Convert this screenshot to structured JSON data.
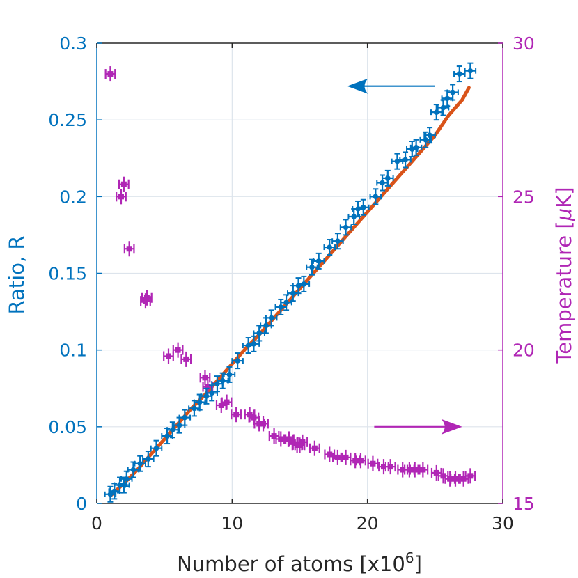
{
  "chart_data": {
    "type": "scatter",
    "title": "",
    "xlabel": "Number of atoms [x10",
    "xlabel_sup": "6",
    "xlabel_end": "]",
    "ylabel_left": "Ratio, R",
    "ylabel_right": "Temperature [",
    "ylabel_right_mu": "μ",
    "ylabel_right_end": "K]",
    "xlim": [
      0,
      30
    ],
    "ylim_left": [
      0,
      0.3
    ],
    "ylim_right": [
      15,
      30
    ],
    "x_ticks": [
      0,
      10,
      20,
      30
    ],
    "x_tick_labels": [
      "0",
      "10",
      "20",
      "30"
    ],
    "y_left_ticks": [
      0,
      0.05,
      0.1,
      0.15,
      0.2,
      0.25,
      0.3
    ],
    "y_left_tick_labels": [
      "0",
      "0.05",
      "0.1",
      "0.15",
      "0.2",
      "0.25",
      "0.3"
    ],
    "y_right_ticks": [
      15,
      20,
      25,
      30
    ],
    "y_right_tick_labels": [
      "15",
      "20",
      "25",
      "30"
    ],
    "grid": true,
    "colors": {
      "ratio": "#0072BD",
      "temperature": "#B026B5",
      "fit": "#D95319",
      "axis": "#262626",
      "grid": "#dde4ec"
    },
    "series": [
      {
        "name": "Ratio R",
        "axis": "left",
        "marker": "circle",
        "xerr": 0.4,
        "yerr": 0.005,
        "points": [
          [
            1.0,
            0.006
          ],
          [
            1.3,
            0.008
          ],
          [
            1.7,
            0.012
          ],
          [
            2.0,
            0.012
          ],
          [
            2.2,
            0.016
          ],
          [
            2.7,
            0.022
          ],
          [
            3.2,
            0.026
          ],
          [
            3.8,
            0.029
          ],
          [
            4.4,
            0.036
          ],
          [
            5.2,
            0.044
          ],
          [
            5.6,
            0.048
          ],
          [
            6.1,
            0.051
          ],
          [
            6.5,
            0.056
          ],
          [
            7.2,
            0.062
          ],
          [
            7.6,
            0.066
          ],
          [
            8.1,
            0.07
          ],
          [
            8.5,
            0.072
          ],
          [
            8.9,
            0.078
          ],
          [
            9.3,
            0.08
          ],
          [
            9.8,
            0.084
          ],
          [
            10.4,
            0.093
          ],
          [
            11.2,
            0.103
          ],
          [
            11.6,
            0.104
          ],
          [
            12.0,
            0.111
          ],
          [
            12.5,
            0.116
          ],
          [
            12.9,
            0.121
          ],
          [
            13.6,
            0.128
          ],
          [
            14.0,
            0.131
          ],
          [
            14.5,
            0.137
          ],
          [
            14.9,
            0.142
          ],
          [
            15.3,
            0.143
          ],
          [
            15.9,
            0.154
          ],
          [
            16.4,
            0.158
          ],
          [
            17.2,
            0.167
          ],
          [
            17.8,
            0.171
          ],
          [
            18.4,
            0.18
          ],
          [
            19.0,
            0.187
          ],
          [
            19.3,
            0.192
          ],
          [
            19.7,
            0.193
          ],
          [
            20.6,
            0.2
          ],
          [
            21.1,
            0.209
          ],
          [
            21.5,
            0.212
          ],
          [
            22.2,
            0.223
          ],
          [
            22.8,
            0.224
          ],
          [
            23.3,
            0.231
          ],
          [
            23.6,
            0.232
          ],
          [
            24.3,
            0.237
          ],
          [
            24.6,
            0.24
          ],
          [
            25.1,
            0.255
          ],
          [
            25.6,
            0.258
          ],
          [
            25.9,
            0.264
          ],
          [
            26.3,
            0.268
          ],
          [
            26.8,
            0.28
          ],
          [
            27.6,
            0.282
          ]
        ]
      },
      {
        "name": "Temperature",
        "axis": "right",
        "marker": "square",
        "xerr": 0.35,
        "yerr": 0.25,
        "points": [
          [
            1.0,
            29.0
          ],
          [
            1.8,
            25.0
          ],
          [
            2.0,
            25.4
          ],
          [
            2.4,
            23.3
          ],
          [
            3.6,
            21.6
          ],
          [
            3.7,
            21.7
          ],
          [
            5.3,
            19.8
          ],
          [
            6.0,
            20.0
          ],
          [
            6.6,
            19.7
          ],
          [
            8.0,
            19.1
          ],
          [
            8.2,
            18.8
          ],
          [
            9.2,
            18.2
          ],
          [
            9.6,
            18.3
          ],
          [
            10.3,
            17.9
          ],
          [
            11.3,
            17.9
          ],
          [
            11.6,
            17.8
          ],
          [
            12.0,
            17.6
          ],
          [
            12.3,
            17.6
          ],
          [
            13.1,
            17.2
          ],
          [
            13.6,
            17.1
          ],
          [
            14.2,
            17.1
          ],
          [
            14.5,
            17.0
          ],
          [
            14.8,
            16.9
          ],
          [
            15.0,
            16.9
          ],
          [
            15.2,
            17.0
          ],
          [
            16.1,
            16.8
          ],
          [
            17.2,
            16.6
          ],
          [
            17.8,
            16.5
          ],
          [
            18.4,
            16.5
          ],
          [
            19.1,
            16.4
          ],
          [
            19.5,
            16.4
          ],
          [
            20.4,
            16.3
          ],
          [
            21.2,
            16.2
          ],
          [
            21.7,
            16.2
          ],
          [
            22.6,
            16.1
          ],
          [
            23.1,
            16.1
          ],
          [
            23.5,
            16.1
          ],
          [
            24.1,
            16.1
          ],
          [
            25.1,
            16.0
          ],
          [
            25.6,
            15.9
          ],
          [
            26.1,
            15.8
          ],
          [
            26.5,
            15.8
          ],
          [
            27.1,
            15.8
          ],
          [
            27.6,
            15.9
          ]
        ]
      },
      {
        "name": "Fit",
        "axis": "left",
        "type": "line",
        "points": [
          [
            1.0,
            0.005
          ],
          [
            2.0,
            0.013
          ],
          [
            3.0,
            0.022
          ],
          [
            4.0,
            0.032
          ],
          [
            5.0,
            0.042
          ],
          [
            6.0,
            0.052
          ],
          [
            7.0,
            0.062
          ],
          [
            8.0,
            0.071
          ],
          [
            9.0,
            0.081
          ],
          [
            10.0,
            0.091
          ],
          [
            11.0,
            0.101
          ],
          [
            12.0,
            0.11
          ],
          [
            13.0,
            0.12
          ],
          [
            14.0,
            0.13
          ],
          [
            15.0,
            0.14
          ],
          [
            16.0,
            0.15
          ],
          [
            17.0,
            0.16
          ],
          [
            18.0,
            0.17
          ],
          [
            19.0,
            0.18
          ],
          [
            20.0,
            0.19
          ],
          [
            21.0,
            0.2
          ],
          [
            22.0,
            0.21
          ],
          [
            23.0,
            0.22
          ],
          [
            24.0,
            0.23
          ],
          [
            25.0,
            0.24
          ],
          [
            26.0,
            0.253
          ],
          [
            26.5,
            0.258
          ],
          [
            27.0,
            0.263
          ],
          [
            27.5,
            0.271
          ]
        ]
      }
    ],
    "annotations": [
      {
        "name": "arrow-left",
        "color": "ratio",
        "from": [
          25,
          0.272
        ],
        "to": [
          18.5,
          0.272
        ]
      },
      {
        "name": "arrow-right",
        "color": "temperature",
        "from": [
          20.5,
          17.5
        ],
        "to": [
          27,
          17.5
        ],
        "axis": "right"
      }
    ]
  }
}
